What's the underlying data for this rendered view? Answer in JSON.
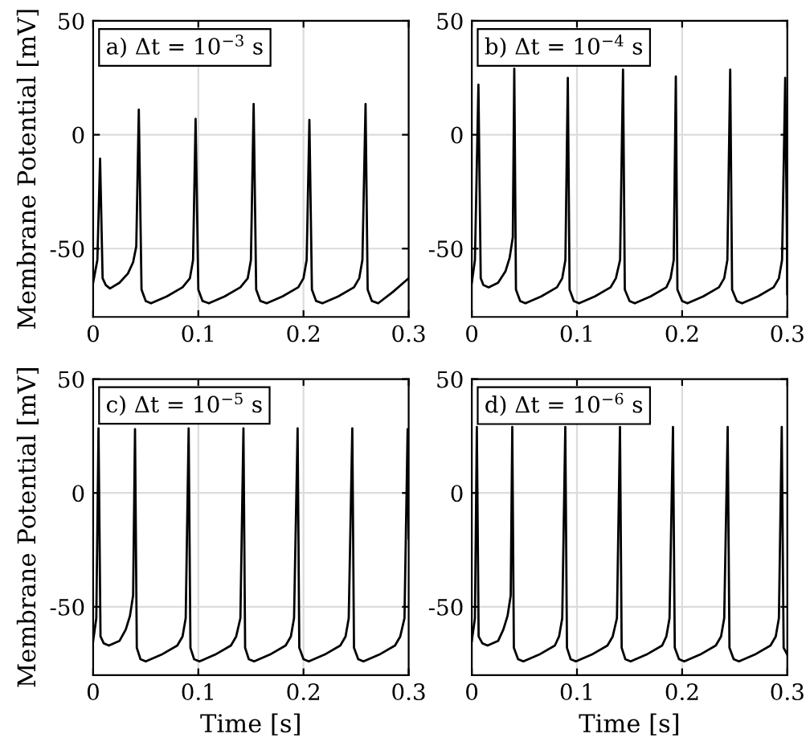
{
  "chart_data": [
    {
      "type": "line",
      "ylabel": "Membrane Potential [mV]",
      "annotations": [
        "a) Δt = 10$^{−3}$ s"
      ],
      "xlim": [
        0,
        0.3
      ],
      "ylim": [
        -80,
        50
      ],
      "xticks": [
        0,
        0.1,
        0.2,
        0.3
      ],
      "yticks": [
        -50,
        0,
        50
      ],
      "grid": true,
      "series": [
        {
          "color": "#000000",
          "x": [
            0,
            0.004,
            0.0066,
            0.009,
            0.012,
            0.016,
            0.025,
            0.033,
            0.038,
            0.041,
            0.0434,
            0.046,
            0.05,
            0.055,
            0.07,
            0.085,
            0.092,
            0.095,
            0.0974,
            0.1,
            0.104,
            0.11,
            0.125,
            0.14,
            0.147,
            0.15,
            0.1526,
            0.155,
            0.159,
            0.165,
            0.18,
            0.195,
            0.2,
            0.203,
            0.2056,
            0.208,
            0.212,
            0.218,
            0.233,
            0.248,
            0.253,
            0.256,
            0.259,
            0.261,
            0.265,
            0.271,
            0.285,
            0.3
          ],
          "values": [
            -65,
            -55,
            -10.5,
            -63,
            -66,
            -67.5,
            -65,
            -61,
            -56,
            -49,
            11,
            -68,
            -73,
            -74,
            -71,
            -67,
            -63,
            -55,
            7,
            -68,
            -73,
            -74,
            -71,
            -67,
            -63,
            -55,
            13.5,
            -68,
            -73,
            -74,
            -71,
            -67,
            -63,
            -55,
            6.5,
            -68,
            -73,
            -74,
            -71,
            -67,
            -63,
            -55,
            13.5,
            -68,
            -73,
            -74,
            -69,
            -63
          ]
        }
      ]
    },
    {
      "type": "line",
      "annotations": [
        "b) Δt = 10$^{−4}$ s"
      ],
      "xlim": [
        0,
        0.3
      ],
      "ylim": [
        -80,
        50
      ],
      "xticks": [
        0,
        0.1,
        0.2,
        0.3
      ],
      "yticks": [
        -50,
        0,
        50
      ],
      "grid": true,
      "series": [
        {
          "color": "#000000",
          "x": [
            0,
            0.003,
            0.0063,
            0.0085,
            0.011,
            0.016,
            0.025,
            0.032,
            0.036,
            0.039,
            0.0404,
            0.042,
            0.046,
            0.051,
            0.066,
            0.081,
            0.086,
            0.089,
            0.0913,
            0.093,
            0.097,
            0.102,
            0.117,
            0.132,
            0.137,
            0.141,
            0.1438,
            0.1455,
            0.15,
            0.155,
            0.17,
            0.185,
            0.189,
            0.192,
            0.194,
            0.1955,
            0.2,
            0.205,
            0.22,
            0.235,
            0.24,
            0.243,
            0.2457,
            0.2475,
            0.252,
            0.257,
            0.272,
            0.287,
            0.292,
            0.295,
            0.298,
            0.2995,
            0.3
          ],
          "values": [
            -65,
            -55,
            22,
            -63,
            -66,
            -67,
            -65,
            -60,
            -54,
            -45,
            29,
            -68,
            -73,
            -74,
            -71,
            -67,
            -63,
            -55,
            25,
            -68,
            -73,
            -74,
            -71,
            -67,
            -63,
            -55,
            28.6,
            -68,
            -73,
            -74,
            -71,
            -67,
            -63,
            -55,
            25.6,
            -68,
            -73,
            -74,
            -71,
            -67,
            -63,
            -55,
            28.6,
            -68,
            -73,
            -74,
            -71,
            -67,
            -63,
            -55,
            25,
            -40,
            -70
          ]
        }
      ]
    },
    {
      "type": "line",
      "xlabel": "Time [s]",
      "ylabel": "Membrane Potential [mV]",
      "annotations": [
        "c) Δt = 10$^{−5}$ s"
      ],
      "xlim": [
        0,
        0.3
      ],
      "ylim": [
        -80,
        50
      ],
      "xticks": [
        0,
        0.1,
        0.2,
        0.3
      ],
      "yticks": [
        -50,
        0,
        50
      ],
      "grid": true,
      "series": [
        {
          "color": "#000000",
          "x": [
            0,
            0.003,
            0.0051,
            0.007,
            0.01,
            0.015,
            0.025,
            0.031,
            0.035,
            0.038,
            0.0398,
            0.0415,
            0.045,
            0.05,
            0.065,
            0.08,
            0.085,
            0.088,
            0.0908,
            0.0925,
            0.096,
            0.101,
            0.116,
            0.131,
            0.136,
            0.14,
            0.1429,
            0.1445,
            0.148,
            0.153,
            0.168,
            0.183,
            0.188,
            0.191,
            0.1944,
            0.196,
            0.2,
            0.205,
            0.22,
            0.235,
            0.24,
            0.243,
            0.2464,
            0.248,
            0.252,
            0.257,
            0.272,
            0.287,
            0.292,
            0.296,
            0.299,
            0.3
          ],
          "values": [
            -65,
            -55,
            28.4,
            -63,
            -66,
            -67,
            -65,
            -60,
            -54,
            -45,
            28,
            -68,
            -73,
            -74,
            -71,
            -67,
            -63,
            -55,
            28.4,
            -68,
            -73,
            -74,
            -71,
            -67,
            -63,
            -55,
            28.4,
            -68,
            -73,
            -74,
            -71,
            -67,
            -63,
            -55,
            28.4,
            -68,
            -73,
            -74,
            -71,
            -67,
            -63,
            -55,
            28.4,
            -68,
            -73,
            -74,
            -71,
            -67,
            -63,
            -55,
            28,
            -20
          ]
        }
      ]
    },
    {
      "type": "line",
      "xlabel": "Time [s]",
      "annotations": [
        "d) Δt = 10$^{−6}$ s"
      ],
      "xlim": [
        0,
        0.3
      ],
      "ylim": [
        -80,
        50
      ],
      "xticks": [
        0,
        0.1,
        0.2,
        0.3
      ],
      "yticks": [
        -50,
        0,
        50
      ],
      "grid": true,
      "series": [
        {
          "color": "#000000",
          "x": [
            0,
            0.003,
            0.0048,
            0.0065,
            0.01,
            0.015,
            0.025,
            0.03,
            0.034,
            0.037,
            0.0385,
            0.04,
            0.044,
            0.049,
            0.064,
            0.079,
            0.083,
            0.086,
            0.0889,
            0.0905,
            0.094,
            0.099,
            0.114,
            0.129,
            0.134,
            0.138,
            0.1409,
            0.1425,
            0.146,
            0.151,
            0.166,
            0.181,
            0.185,
            0.188,
            0.1913,
            0.193,
            0.197,
            0.202,
            0.217,
            0.232,
            0.237,
            0.24,
            0.2433,
            0.245,
            0.249,
            0.254,
            0.269,
            0.284,
            0.289,
            0.292,
            0.2947,
            0.2965,
            0.3
          ],
          "values": [
            -65,
            -55,
            29,
            -63,
            -66,
            -67,
            -65,
            -60,
            -54,
            -45,
            29,
            -68,
            -73,
            -74,
            -71,
            -67,
            -63,
            -55,
            29,
            -68,
            -73,
            -74,
            -71,
            -67,
            -63,
            -55,
            29,
            -68,
            -73,
            -74,
            -71,
            -67,
            -63,
            -55,
            29,
            -68,
            -73,
            -74,
            -71,
            -67,
            -63,
            -55,
            29,
            -68,
            -73,
            -74,
            -71,
            -67,
            -63,
            -55,
            29,
            -68,
            -71
          ]
        }
      ]
    }
  ]
}
